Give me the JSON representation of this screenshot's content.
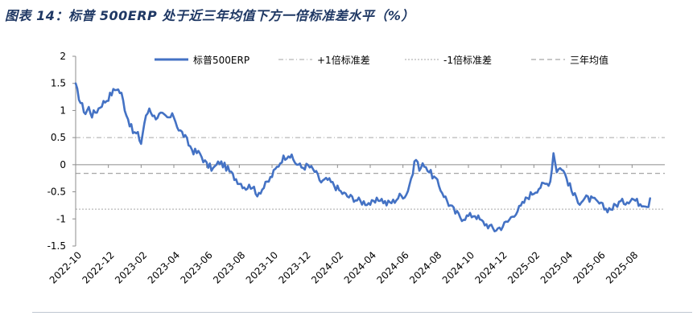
{
  "page": {
    "title": "图表 14：标普 500ERP 处于近三年均值下方一倍标准差水平（%）"
  },
  "chart_data": {
    "type": "line",
    "title": "标普 500ERP 处于近三年均值下方一倍标准差水平（%）",
    "ylim": [
      -1.5,
      2
    ],
    "yticks": [
      2,
      1.5,
      1,
      0.5,
      0,
      -0.5,
      -1,
      -1.5
    ],
    "ytick_labels": [
      "2",
      "1.5",
      "1",
      "0.5",
      "0",
      "-0.5",
      "-1",
      "-1.5"
    ],
    "x_tick_labels": [
      "2022-10",
      "2022-12",
      "2023-02",
      "2023-04",
      "2023-06",
      "2023-08",
      "2023-10",
      "2023-12",
      "2024-02",
      "2024-04",
      "2024-06",
      "2024-08",
      "2024-10",
      "2024-12",
      "2025-02",
      "2025-04",
      "2025-06",
      "2025-08"
    ],
    "legend": [
      "标普500ERP",
      "+1倍标准差",
      "-1倍标准差",
      "三年均值"
    ],
    "legend_position": "top",
    "reference_lines": {
      "plus_1_std": 0.5,
      "minus_1_std": -0.82,
      "mean": -0.16
    },
    "colors": {
      "series": "#4472c4",
      "ref": "#a6a6a6",
      "axis": "#8c8c8c",
      "title": "#1f3864"
    },
    "series": [
      {
        "name": "标普500ERP",
        "anchors": [
          [
            0.0,
            1.45
          ],
          [
            0.3,
            1.15
          ],
          [
            0.6,
            0.95
          ],
          [
            0.8,
            1.05
          ],
          [
            1.0,
            0.92
          ],
          [
            1.3,
            1.0
          ],
          [
            1.6,
            1.12
          ],
          [
            1.9,
            1.2
          ],
          [
            2.2,
            1.32
          ],
          [
            2.5,
            1.42
          ],
          [
            2.8,
            1.3
          ],
          [
            3.0,
            1.05
          ],
          [
            3.2,
            0.85
          ],
          [
            3.5,
            0.6
          ],
          [
            3.8,
            0.55
          ],
          [
            4.0,
            0.4
          ],
          [
            4.2,
            0.78
          ],
          [
            4.5,
            1.05
          ],
          [
            4.8,
            0.88
          ],
          [
            5.2,
            0.92
          ],
          [
            5.6,
            0.85
          ],
          [
            6.0,
            0.9
          ],
          [
            6.3,
            0.65
          ],
          [
            6.6,
            0.55
          ],
          [
            6.9,
            0.38
          ],
          [
            7.2,
            0.25
          ],
          [
            7.6,
            0.2
          ],
          [
            8.0,
            0.0
          ],
          [
            8.4,
            -0.08
          ],
          [
            8.8,
            0.05
          ],
          [
            9.2,
            -0.05
          ],
          [
            9.6,
            -0.2
          ],
          [
            10.0,
            -0.32
          ],
          [
            10.4,
            -0.42
          ],
          [
            10.8,
            -0.38
          ],
          [
            11.0,
            -0.55
          ],
          [
            11.4,
            -0.45
          ],
          [
            11.8,
            -0.3
          ],
          [
            12.2,
            -0.1
          ],
          [
            12.6,
            0.1
          ],
          [
            13.0,
            0.2
          ],
          [
            13.4,
            0.05
          ],
          [
            13.8,
            -0.05
          ],
          [
            14.2,
            -0.02
          ],
          [
            14.6,
            -0.12
          ],
          [
            15.0,
            -0.32
          ],
          [
            15.4,
            -0.28
          ],
          [
            15.8,
            -0.38
          ],
          [
            16.2,
            -0.5
          ],
          [
            16.6,
            -0.58
          ],
          [
            17.0,
            -0.62
          ],
          [
            17.4,
            -0.68
          ],
          [
            17.8,
            -0.7
          ],
          [
            18.2,
            -0.72
          ],
          [
            18.6,
            -0.62
          ],
          [
            19.0,
            -0.72
          ],
          [
            19.4,
            -0.68
          ],
          [
            19.8,
            -0.58
          ],
          [
            20.2,
            -0.55
          ],
          [
            20.6,
            -0.15
          ],
          [
            20.8,
            0.15
          ],
          [
            21.0,
            -0.1
          ],
          [
            21.3,
            0.02
          ],
          [
            21.6,
            -0.12
          ],
          [
            22.0,
            -0.28
          ],
          [
            22.4,
            -0.5
          ],
          [
            22.8,
            -0.72
          ],
          [
            23.2,
            -0.88
          ],
          [
            23.6,
            -0.98
          ],
          [
            24.0,
            -0.95
          ],
          [
            24.4,
            -0.92
          ],
          [
            24.8,
            -1.05
          ],
          [
            25.2,
            -1.12
          ],
          [
            25.6,
            -1.2
          ],
          [
            26.0,
            -1.15
          ],
          [
            26.4,
            -1.05
          ],
          [
            26.8,
            -0.9
          ],
          [
            27.2,
            -0.78
          ],
          [
            27.6,
            -0.6
          ],
          [
            28.0,
            -0.5
          ],
          [
            28.4,
            -0.4
          ],
          [
            28.8,
            -0.35
          ],
          [
            29.0,
            -0.3
          ],
          [
            29.2,
            0.22
          ],
          [
            29.4,
            -0.1
          ],
          [
            29.7,
            -0.05
          ],
          [
            30.0,
            -0.25
          ],
          [
            30.4,
            -0.55
          ],
          [
            30.8,
            -0.68
          ],
          [
            31.2,
            -0.62
          ],
          [
            31.6,
            -0.65
          ],
          [
            32.0,
            -0.72
          ],
          [
            32.4,
            -0.82
          ],
          [
            32.8,
            -0.8
          ],
          [
            33.2,
            -0.7
          ],
          [
            33.6,
            -0.68
          ],
          [
            34.0,
            -0.62
          ],
          [
            34.4,
            -0.7
          ],
          [
            34.8,
            -0.72
          ],
          [
            35.0,
            -0.78
          ]
        ]
      }
    ]
  }
}
